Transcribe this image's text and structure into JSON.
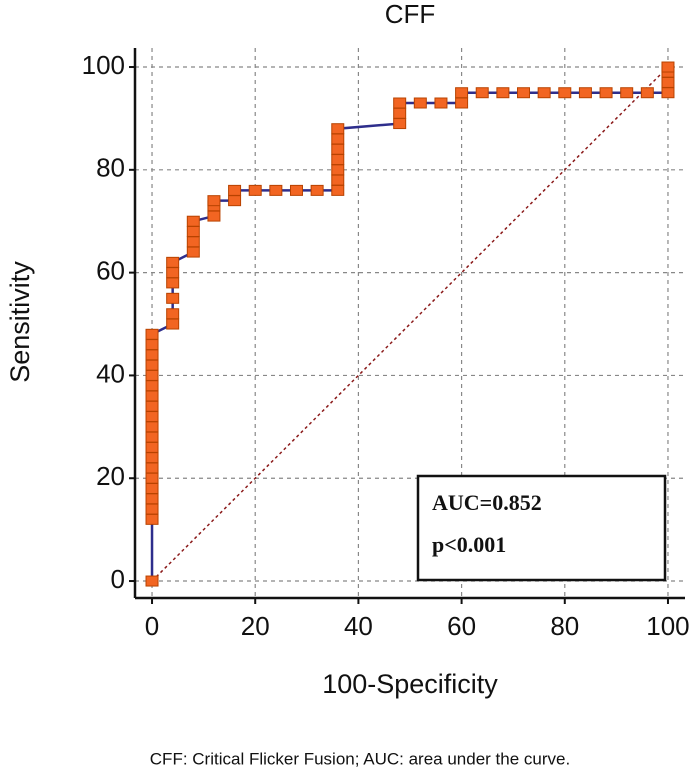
{
  "chart_data": {
    "type": "line",
    "title": "CFF",
    "x_label": "100-Specificity",
    "y_label": "Sensitivity",
    "series": [
      {
        "name": "CFF",
        "color": "#2e2e8c",
        "marker_color": "#f26522",
        "x": [
          0,
          0,
          0,
          0,
          0,
          0,
          0,
          0,
          0,
          0,
          0,
          0,
          0,
          0,
          0,
          0,
          0,
          0,
          0,
          0,
          4,
          4,
          4,
          4,
          4,
          4,
          8,
          8,
          8,
          8,
          12,
          12,
          12,
          16,
          16,
          20,
          24,
          28,
          32,
          36,
          36,
          36,
          36,
          36,
          36,
          36,
          48,
          48,
          48,
          52,
          56,
          60,
          60,
          64,
          68,
          72,
          76,
          80,
          84,
          88,
          92,
          96,
          100,
          100,
          100,
          100
        ],
        "values": [
          0,
          12,
          14,
          16,
          18,
          20,
          22,
          24,
          26,
          28,
          30,
          32,
          34,
          36,
          38,
          40,
          42,
          44,
          46,
          48,
          50,
          52,
          55,
          58,
          60,
          62,
          64,
          66,
          68,
          70,
          71,
          73,
          74,
          74,
          76,
          76,
          76,
          76,
          76,
          76,
          78,
          80,
          82,
          84,
          86,
          88,
          89,
          91,
          93,
          93,
          93,
          93,
          95,
          95,
          95,
          95,
          95,
          95,
          95,
          95,
          95,
          95,
          95,
          97,
          99,
          100
        ]
      }
    ],
    "reference_line": {
      "x": [
        0,
        100
      ],
      "values": [
        0,
        100
      ],
      "color": "#8b1a1a"
    },
    "xlim": [
      -3.3,
      103.3
    ],
    "ylim": [
      -3.3,
      103.7
    ],
    "xticks": [
      0,
      20,
      40,
      60,
      80,
      100
    ],
    "yticks": [
      0,
      20,
      40,
      60,
      80,
      100
    ],
    "grid": true,
    "annotations": [
      "AUC=0.852",
      "p<0.001"
    ],
    "caption": "CFF: Critical Flicker Fusion; AUC: area under the curve."
  }
}
